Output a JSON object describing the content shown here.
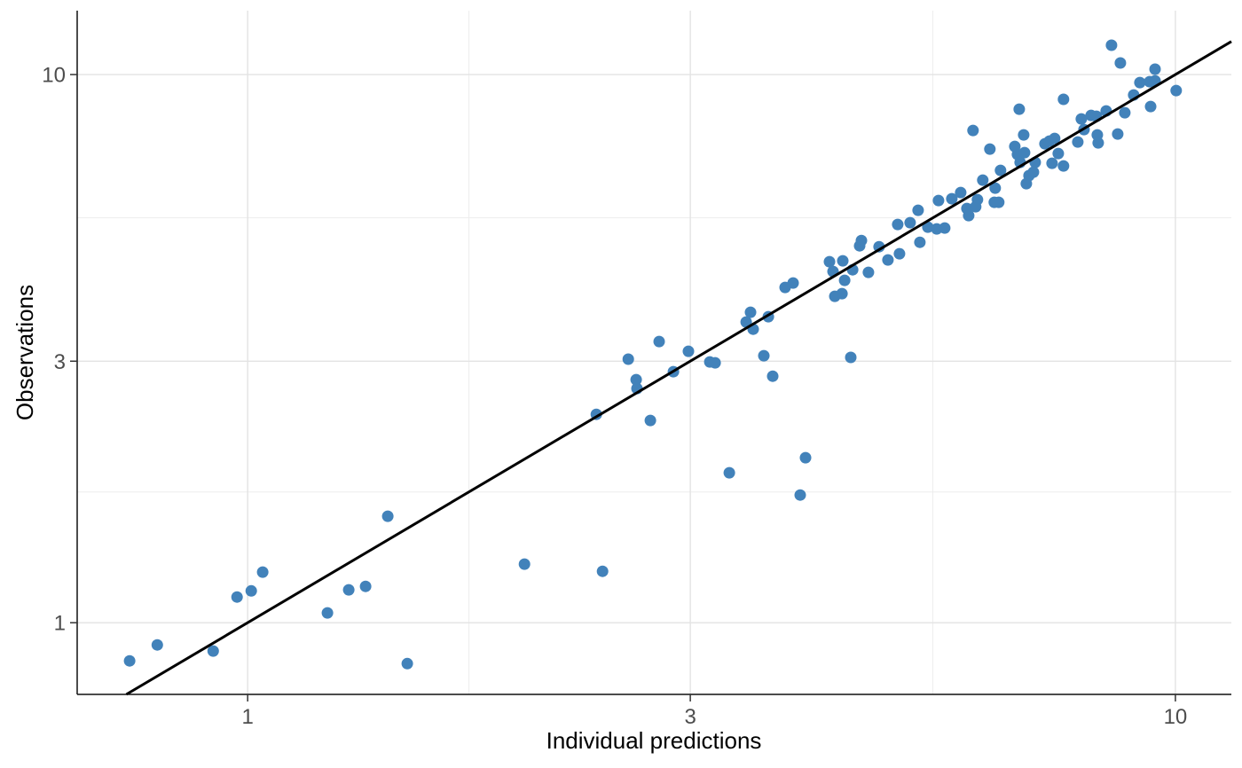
{
  "chart_data": {
    "type": "scatter",
    "title": "",
    "xlabel": "Individual predictions",
    "ylabel": "Observations",
    "x_scale": "log10",
    "y_scale": "log10",
    "xlim": [
      0.655,
      11.49
    ],
    "ylim": [
      0.74,
      13.08
    ],
    "x_breaks": [
      1,
      3,
      10
    ],
    "y_breaks": [
      1,
      3,
      10
    ],
    "x_tick_labels": [
      "1",
      "3",
      "10"
    ],
    "y_tick_labels": [
      "1",
      "3",
      "10"
    ],
    "x_minor_breaks": [
      1.732,
      5.477
    ],
    "y_minor_breaks": [
      1.732,
      5.477
    ],
    "grid": true,
    "legend_position": "none",
    "identity_line": {
      "slope": 1,
      "intercept": 0,
      "from": 0.74,
      "to": 11.49
    },
    "point_color": "#4282BA",
    "line_color": "#000000",
    "axis_line_color": "#111111",
    "tick_color": "#333333",
    "tick_label_color": "#4d4d4d",
    "grid_major_color": "#e3e3e3",
    "grid_minor_color": "#ededed",
    "background_color": "#ffffff",
    "points": [
      [
        0.746,
        0.852
      ],
      [
        0.799,
        0.911
      ],
      [
        0.918,
        0.888
      ],
      [
        0.974,
        1.114
      ],
      [
        1.009,
        1.143
      ],
      [
        1.038,
        1.237
      ],
      [
        1.219,
        1.042
      ],
      [
        1.285,
        1.148
      ],
      [
        1.34,
        1.165
      ],
      [
        1.416,
        1.564
      ],
      [
        1.486,
        0.842
      ],
      [
        1.988,
        1.279
      ],
      [
        2.413,
        1.241
      ],
      [
        2.376,
        2.4
      ],
      [
        2.572,
        3.025
      ],
      [
        2.623,
        2.776
      ],
      [
        2.628,
        2.674
      ],
      [
        2.717,
        2.339
      ],
      [
        2.777,
        3.258
      ],
      [
        2.877,
        2.871
      ],
      [
        2.986,
        3.127
      ],
      [
        3.149,
        2.991
      ],
      [
        3.191,
        2.98
      ],
      [
        3.305,
        1.877
      ],
      [
        3.446,
        3.537
      ],
      [
        3.484,
        3.685
      ],
      [
        3.507,
        3.432
      ],
      [
        3.601,
        3.07
      ],
      [
        3.641,
        3.617
      ],
      [
        3.681,
        2.817
      ],
      [
        3.796,
        4.089
      ],
      [
        3.872,
        4.166
      ],
      [
        3.993,
        2.0
      ],
      [
        3.941,
        1.71
      ],
      [
        4.238,
        4.556
      ],
      [
        4.275,
        4.373
      ],
      [
        4.294,
        3.94
      ],
      [
        4.371,
        3.984
      ],
      [
        4.38,
        4.573
      ],
      [
        4.4,
        4.213
      ],
      [
        4.488,
        4.405
      ],
      [
        4.468,
        3.048
      ],
      [
        4.567,
        4.871
      ],
      [
        4.587,
        4.981
      ],
      [
        4.668,
        4.357
      ],
      [
        4.793,
        4.853
      ],
      [
        4.9,
        4.59
      ],
      [
        5.02,
        5.328
      ],
      [
        5.042,
        4.711
      ],
      [
        5.177,
        5.368
      ],
      [
        5.281,
        5.655
      ],
      [
        5.304,
        4.944
      ],
      [
        5.41,
        5.269
      ],
      [
        5.53,
        5.23
      ],
      [
        5.641,
        5.249
      ],
      [
        5.555,
        5.891
      ],
      [
        5.741,
        5.935
      ],
      [
        5.869,
        6.092
      ],
      [
        5.96,
        5.697
      ],
      [
        5.986,
        5.53
      ],
      [
        6.092,
        5.74
      ],
      [
        6.052,
        7.908
      ],
      [
        6.119,
        5.913
      ],
      [
        6.2,
        6.419
      ],
      [
        6.31,
        7.312
      ],
      [
        6.38,
        5.847
      ],
      [
        6.394,
        6.206
      ],
      [
        6.451,
        5.847
      ],
      [
        6.479,
        6.687
      ],
      [
        6.713,
        7.394
      ],
      [
        6.757,
        7.151
      ],
      [
        6.787,
        8.648
      ],
      [
        6.802,
        6.915
      ],
      [
        6.862,
        7.762
      ],
      [
        6.877,
        7.205
      ],
      [
        6.907,
        6.324
      ],
      [
        6.953,
        6.541
      ],
      [
        7.03,
        6.638
      ],
      [
        7.061,
        6.915
      ],
      [
        7.234,
        7.477
      ],
      [
        7.314,
        7.561
      ],
      [
        7.411,
        7.646
      ],
      [
        7.363,
        6.889
      ],
      [
        7.477,
        7.178
      ],
      [
        7.576,
        6.813
      ],
      [
        7.576,
        9.011
      ],
      [
        7.848,
        7.533
      ],
      [
        7.918,
        8.3
      ],
      [
        7.97,
        7.938
      ],
      [
        8.112,
        8.425
      ],
      [
        8.22,
        8.394
      ],
      [
        8.238,
        7.762
      ],
      [
        8.256,
        7.505
      ],
      [
        8.422,
        8.584
      ],
      [
        8.533,
        11.31
      ],
      [
        8.666,
        7.791
      ],
      [
        8.724,
        10.5
      ],
      [
        8.82,
        8.52
      ],
      [
        9.016,
        9.179
      ],
      [
        9.157,
        9.67
      ],
      [
        9.382,
        9.706
      ],
      [
        9.403,
        8.745
      ],
      [
        9.507,
        9.742
      ],
      [
        9.507,
        10.23
      ],
      [
        10.02,
        9.352
      ]
    ]
  }
}
